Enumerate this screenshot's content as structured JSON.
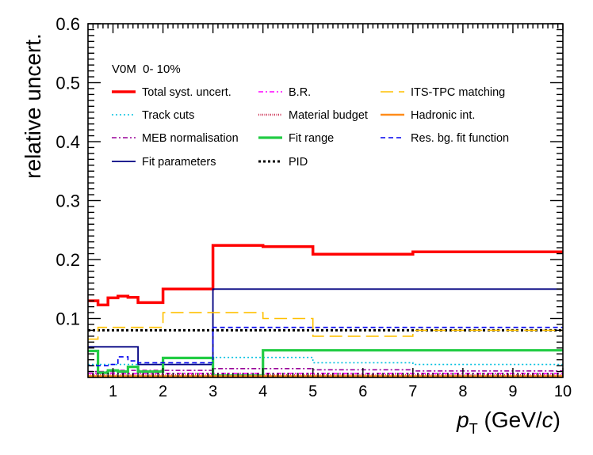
{
  "chart_data": {
    "type": "line",
    "step": true,
    "ylabel": "relative uncert.",
    "xlabel_main": "p",
    "xlabel_sub": "T",
    "xlabel_unit_pre": " (GeV/",
    "xlabel_unit_c": "c",
    "xlabel_unit_post": ")",
    "annotation": "V0M  0- 10%",
    "xlim": [
      0.5,
      10
    ],
    "ylim": [
      0,
      0.6
    ],
    "xticks": [
      1,
      2,
      3,
      4,
      5,
      6,
      7,
      8,
      9,
      10
    ],
    "xtick_labels": [
      "1",
      "2",
      "3",
      "4",
      "5",
      "6",
      "7",
      "8",
      "9",
      "10"
    ],
    "yticks": [
      0.1,
      0.2,
      0.3,
      0.4,
      0.5,
      0.6
    ],
    "ytick_labels": [
      "0.1",
      "0.2",
      "0.3",
      "0.4",
      "0.5",
      "0.6"
    ],
    "bin_edges": [
      0.5,
      0.7,
      0.9,
      1.1,
      1.3,
      1.5,
      2,
      3,
      4,
      5,
      7,
      10
    ],
    "grid": false,
    "legend_position": "top",
    "series": [
      {
        "name": "Total syst. uncert.",
        "color": "#ff0000",
        "dash": "",
        "width": 3.5,
        "values": [
          0.13,
          0.123,
          0.135,
          0.138,
          0.136,
          0.127,
          0.15,
          0.224,
          0.222,
          0.209,
          0.213
        ]
      },
      {
        "name": "Track cuts",
        "color": "#00c0e0",
        "dash": "2,3",
        "width": 1.6,
        "values": [
          0.022,
          0.022,
          0.022,
          0.022,
          0.022,
          0.022,
          0.022,
          0.034,
          0.034,
          0.025,
          0.022
        ]
      },
      {
        "name": "MEB normalisation",
        "color": "#990099",
        "dash": "6,3,2,3",
        "width": 1.6,
        "values": [
          0.01,
          0.01,
          0.01,
          0.012,
          0.012,
          0.012,
          0.012,
          0.015,
          0.015,
          0.013,
          0.011
        ]
      },
      {
        "name": "Fit parameters",
        "color": "#000080",
        "dash": "",
        "width": 1.8,
        "values": [
          0.052,
          0.052,
          0.052,
          0.052,
          0.052,
          0.022,
          0.022,
          0.15,
          0.15,
          0.15,
          0.15
        ]
      },
      {
        "name": "B.R.",
        "color": "#ff00ff",
        "dash": "6,3,2,3",
        "width": 1.6,
        "values": [
          0.007,
          0.007,
          0.007,
          0.007,
          0.007,
          0.007,
          0.007,
          0.007,
          0.007,
          0.007,
          0.007
        ]
      },
      {
        "name": "Material budget",
        "color": "#cc3355",
        "dash": "1,1.5",
        "width": 2.5,
        "values": [
          0.004,
          0.004,
          0.004,
          0.004,
          0.004,
          0.004,
          0.004,
          0.004,
          0.004,
          0.004,
          0.004
        ]
      },
      {
        "name": "Fit range",
        "color": "#22cc44",
        "dash": "",
        "width": 3.2,
        "values": [
          0.045,
          0.008,
          0.012,
          0.01,
          0.018,
          0.01,
          0.033,
          0.003,
          0.046,
          0.046,
          0.046
        ]
      },
      {
        "name": "PID",
        "color": "#000000",
        "dash": "3,3",
        "width": 3,
        "values": [
          0.08,
          0.08,
          0.08,
          0.08,
          0.08,
          0.08,
          0.08,
          0.08,
          0.08,
          0.08,
          0.08
        ]
      },
      {
        "name": "ITS-TPC matching",
        "color": "#ffc000",
        "dash": "16,7",
        "width": 1.6,
        "values": [
          0.065,
          0.085,
          0.085,
          0.085,
          0.085,
          0.085,
          0.11,
          0.11,
          0.1,
          0.07,
          0.08
        ]
      },
      {
        "name": "Hadronic int.",
        "color": "#ff8c1a",
        "dash": "",
        "width": 2.5,
        "values": [
          0.002,
          0.002,
          0.002,
          0.002,
          0.002,
          0.002,
          0.002,
          0.002,
          0.002,
          0.002,
          0.002
        ]
      },
      {
        "name": "Res. bg. fit function",
        "color": "#0000ee",
        "dash": "6,4",
        "width": 1.6,
        "values": [
          0.02,
          0.02,
          0.022,
          0.035,
          0.028,
          0.025,
          0.025,
          0.085,
          0.085,
          0.085,
          0.085
        ]
      }
    ]
  }
}
